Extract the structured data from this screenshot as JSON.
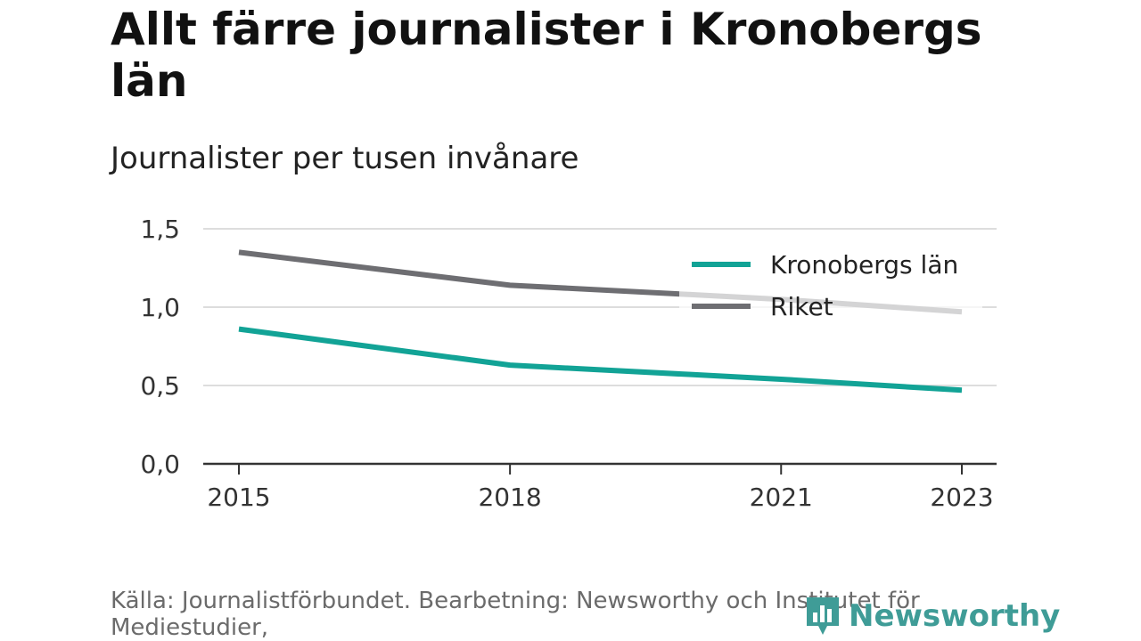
{
  "title": "Allt färre journalister i Kronobergs län",
  "subtitle": "Journalister per tusen invånare",
  "source": "Källa: Journalistförbundet. Bearbetning: Newsworthy och Institutet för Mediestudier,",
  "logo": {
    "text": "Newsworthy",
    "icon": "bar-chart-pin-icon"
  },
  "colors": {
    "kronoberg": "#12a396",
    "riket": "#6e6e72",
    "grid": "#dddddd",
    "axis": "#333333"
  },
  "chart_data": {
    "type": "line",
    "x": [
      2015,
      2018,
      2020,
      2021,
      2023
    ],
    "xticks": [
      "2015",
      "2018",
      "2021",
      "2023"
    ],
    "yticks": [
      "0,0",
      "0,5",
      "1,0",
      "1,5"
    ],
    "ylim": [
      0,
      1.5
    ],
    "grid": true,
    "legend_position": "top-right",
    "series": [
      {
        "name": "Kronobergs län",
        "values": [
          0.86,
          0.63,
          0.57,
          0.54,
          0.47
        ]
      },
      {
        "name": "Riket",
        "values": [
          1.35,
          1.14,
          1.08,
          1.05,
          0.97
        ]
      }
    ]
  }
}
